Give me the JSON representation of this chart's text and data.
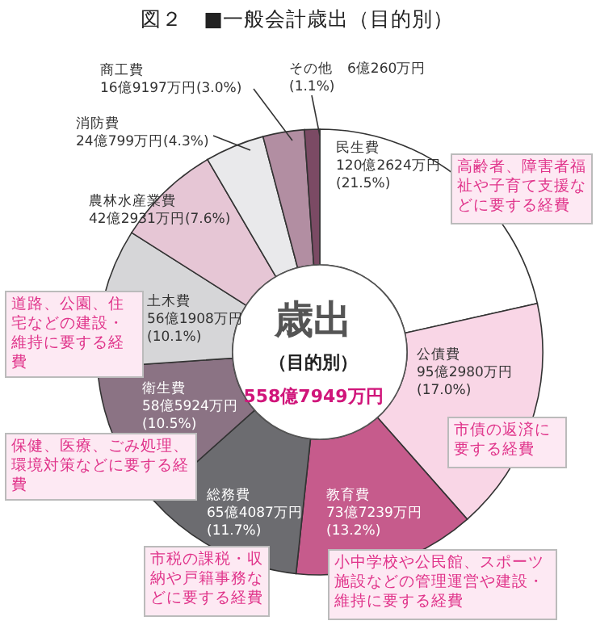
{
  "chart_data": {
    "type": "donut",
    "title": "図２　■一般会計歳出（目的別）",
    "categories": [
      "民生費",
      "公債費",
      "教育費",
      "総務費",
      "衛生費",
      "土木費",
      "農林水産業費",
      "消防費",
      "商工費",
      "その他"
    ],
    "values": [
      21.5,
      17.0,
      13.2,
      11.7,
      10.5,
      10.1,
      7.6,
      4.3,
      3.0,
      1.1
    ],
    "colors": [
      "#ffffff",
      "#f9d6e6",
      "#c65b8c",
      "#6c6c70",
      "#8b7384",
      "#d6d6d8",
      "#e6c6d5",
      "#e9e9eb",
      "#b28ea2",
      "#7b4a64"
    ],
    "value_labels": [
      "120億2624万円(21.5%)",
      "95億2980万円(17.0%)",
      "73億7239万円(13.2%)",
      "65億4087万円(11.7%)",
      "58億5924万円(10.5%)",
      "56億1908万円(10.1%)",
      "42億2931万円(7.6%)",
      "24億799万円(4.3%)",
      "16億9197万円(3.0%)",
      "6億260万円(1.1%)"
    ],
    "annotations": [
      "高齢者、障害者福祉や子育て支援などに要する経費",
      "市債の返済に要する経費",
      "小中学校や公民館、スポーツ施設などの管理運営や建設・維持に要する経費",
      "市税の課税・収納や戸籍事務などに要する経費",
      "保健、医療、ごみ処理、環境対策などに要する経費",
      "道路、公園、住宅などの建設・維持に要する経費",
      "歳出",
      "（目的別）",
      "558億7949万円"
    ],
    "legend": false
  }
}
